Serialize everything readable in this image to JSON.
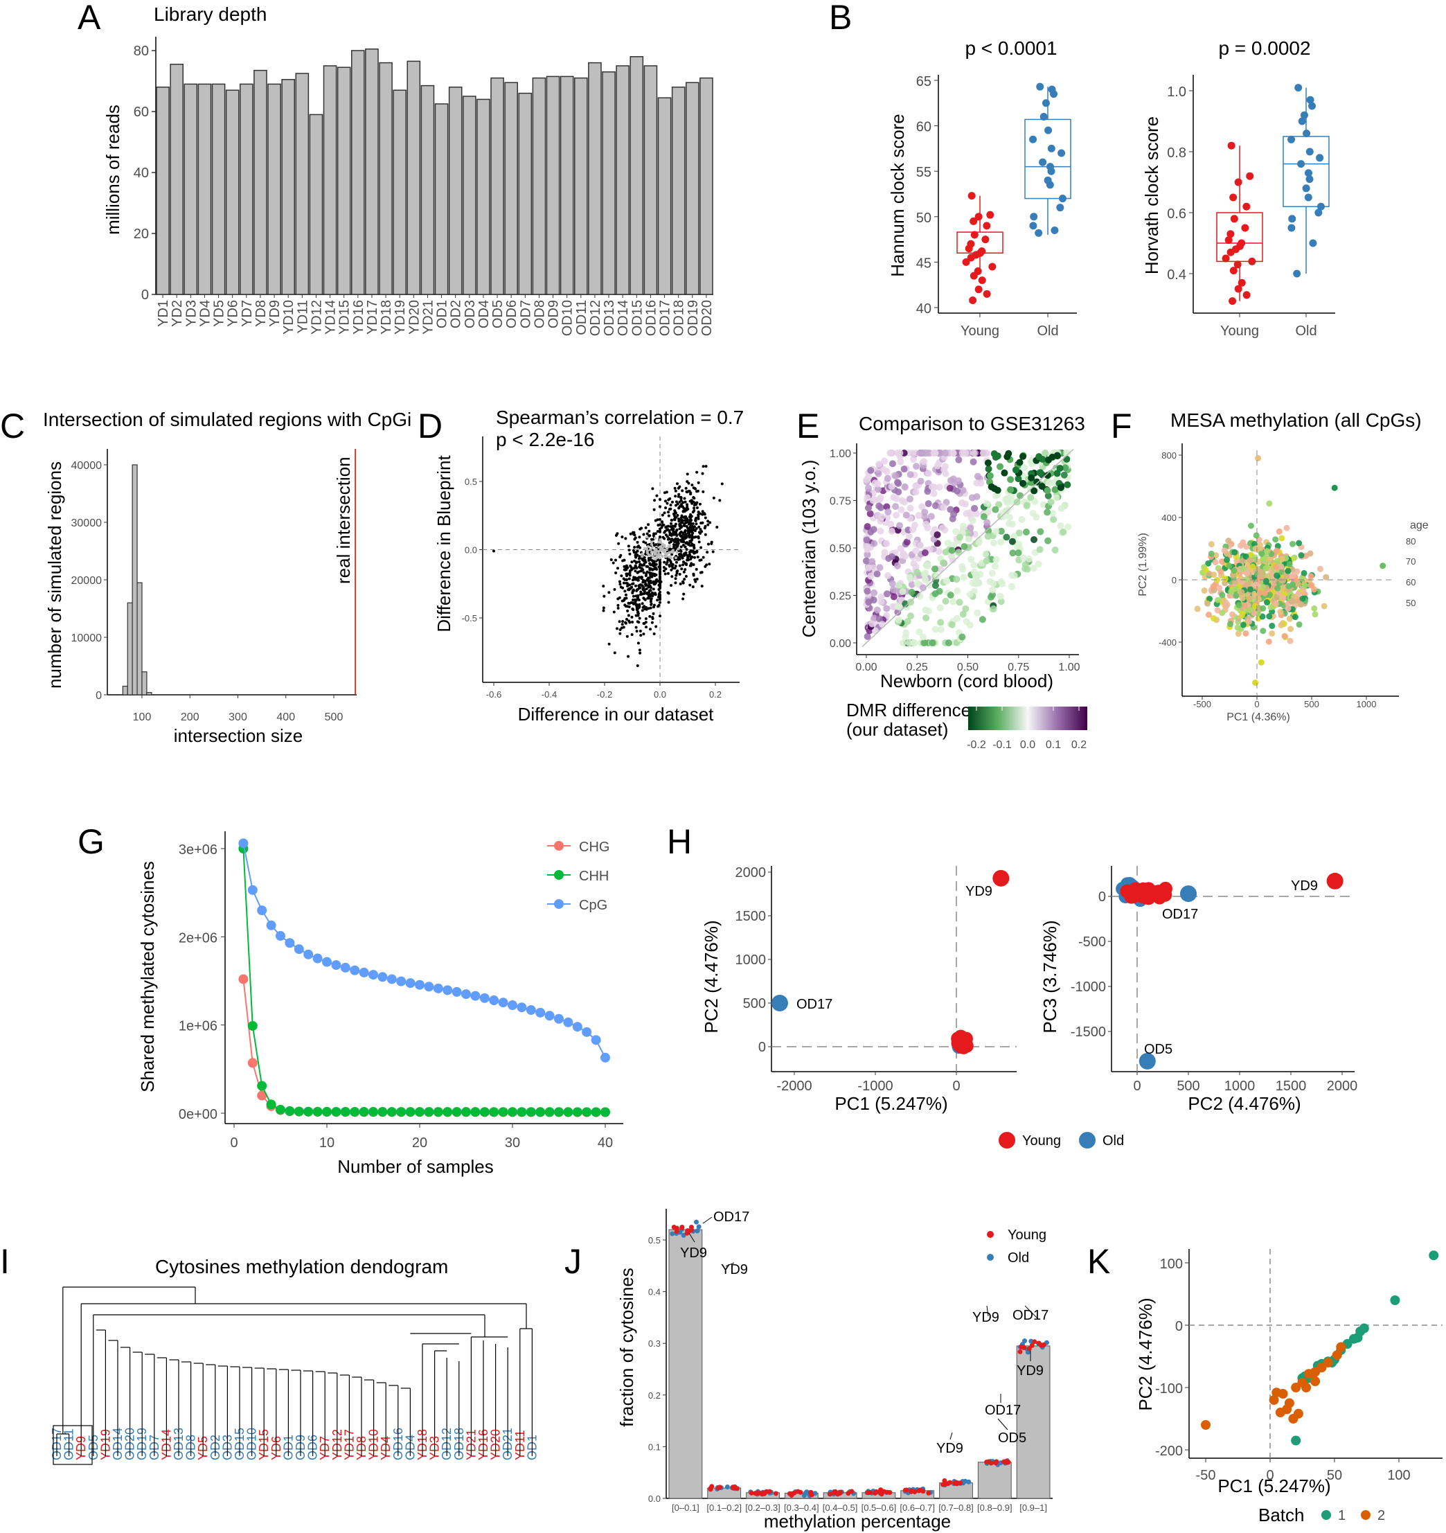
{
  "panel_labels": [
    "A",
    "B",
    "C",
    "D",
    "E",
    "F",
    "G",
    "H",
    "I",
    "J",
    "K"
  ],
  "colors": {
    "young": "#e41a1c",
    "old": "#377eb8",
    "bar": "#bebebe",
    "chg": "#f8766d",
    "chh": "#00ba38",
    "cpg": "#619cff",
    "batch1": "#1b9e77",
    "batch2": "#d95f02",
    "real_line": "#c0392b"
  },
  "chart_data": [
    {
      "id": "A",
      "type": "bar",
      "title": "Library depth",
      "ylabel": "millions of reads",
      "ylim": [
        0,
        80
      ],
      "yticks": [
        "0",
        "20",
        "40",
        "60",
        "80"
      ],
      "categories": [
        "YD1",
        "YD2",
        "YD3",
        "YD4",
        "YD5",
        "YD6",
        "YD7",
        "YD8",
        "YD9",
        "YD10",
        "YD11",
        "YD12",
        "YD14",
        "YD15",
        "YD16",
        "YD17",
        "YD18",
        "YD19",
        "YD20",
        "YD21",
        "OD1",
        "OD2",
        "OD3",
        "OD4",
        "OD5",
        "OD6",
        "OD7",
        "OD8",
        "OD9",
        "OD10",
        "OD11",
        "OD12",
        "OD13",
        "OD14",
        "OD15",
        "OD16",
        "OD17",
        "OD18",
        "OD19",
        "OD20"
      ],
      "values": [
        68,
        75.5,
        69,
        69,
        69,
        67,
        69,
        73.5,
        69,
        70.5,
        72.5,
        59,
        75,
        74.5,
        80,
        80.5,
        76,
        67,
        76.5,
        68.5,
        62.5,
        68,
        65,
        64,
        71,
        69.5,
        66,
        71,
        71.5,
        71.5,
        71,
        76,
        73,
        75,
        78,
        75,
        64.5,
        68,
        69.5,
        71
      ]
    },
    {
      "id": "B1",
      "type": "scatter",
      "title": "p < 0.0001",
      "ylabel": "Hannum clock score",
      "categories": [
        "Young",
        "Old"
      ],
      "ylim": [
        40,
        65
      ],
      "yticks": [
        "40",
        "45",
        "50",
        "55",
        "60",
        "65"
      ],
      "box": [
        {
          "q1": 46,
          "median": 46,
          "q3": 48.3,
          "min": 44,
          "max": 52.3
        },
        {
          "q1": 52,
          "median": 55.5,
          "q3": 60.7,
          "min": 48,
          "max": 64.3
        }
      ],
      "series": [
        {
          "name": "Young",
          "values": [
            52.3,
            50.2,
            50,
            49.5,
            49,
            48,
            47.5,
            47,
            46.5,
            46.2,
            46,
            45.8,
            45.5,
            45,
            44.5,
            44,
            43.5,
            43,
            42,
            41.5,
            40.8
          ]
        },
        {
          "name": "Old",
          "values": [
            64.3,
            64,
            63.5,
            62.5,
            61,
            59.5,
            58.5,
            57.5,
            57,
            56,
            55.5,
            55,
            54,
            53.5,
            52,
            51,
            50,
            49,
            48.5,
            48.2
          ]
        }
      ]
    },
    {
      "id": "B2",
      "type": "scatter",
      "title": "p = 0.0002",
      "ylabel": "Horvath clock score",
      "categories": [
        "Young",
        "Old"
      ],
      "ylim": [
        0.3,
        1.0
      ],
      "yticks": [
        "0.4",
        "0.6",
        "0.8",
        "1.0"
      ],
      "box": [
        {
          "q1": 0.44,
          "median": 0.5,
          "q3": 0.6,
          "min": 0.31,
          "max": 0.82
        },
        {
          "q1": 0.62,
          "median": 0.76,
          "q3": 0.85,
          "min": 0.4,
          "max": 1.01
        }
      ],
      "series": [
        {
          "name": "Young",
          "values": [
            0.82,
            0.72,
            0.7,
            0.65,
            0.62,
            0.58,
            0.55,
            0.53,
            0.51,
            0.5,
            0.49,
            0.48,
            0.47,
            0.45,
            0.44,
            0.43,
            0.41,
            0.37,
            0.35,
            0.33,
            0.31
          ]
        },
        {
          "name": "Old",
          "values": [
            1.01,
            0.97,
            0.95,
            0.92,
            0.9,
            0.86,
            0.84,
            0.8,
            0.78,
            0.76,
            0.73,
            0.71,
            0.68,
            0.65,
            0.62,
            0.6,
            0.58,
            0.55,
            0.5,
            0.4
          ]
        }
      ]
    },
    {
      "id": "C",
      "type": "histogram",
      "title": "Intersection of simulated regions with CpGi",
      "xlabel": "intersection size",
      "ylabel": "number of simulated regions",
      "xlim": [
        40,
        560
      ],
      "ylim": [
        0,
        44000
      ],
      "xticks": [
        "100",
        "200",
        "300",
        "400",
        "500"
      ],
      "yticks": [
        "0",
        "10000",
        "20000",
        "30000",
        "40000"
      ],
      "bins_x": [
        70,
        80,
        90,
        100,
        110,
        120
      ],
      "counts": [
        1500,
        16000,
        40000,
        19500,
        4000,
        400
      ],
      "real_intersection": 545,
      "annotation": "real intersection"
    },
    {
      "id": "D",
      "type": "scatter",
      "title": "Spearman’s correlation = 0.7",
      "subtitle": "p < 2.2e-16",
      "xlabel": "Difference in our dataset",
      "ylabel": "Difference in Blueprint",
      "xlim": [
        -0.65,
        0.3
      ],
      "ylim": [
        -0.88,
        0.78
      ],
      "xticks": [
        "-0.6",
        "-0.4",
        "-0.2",
        "0.0",
        "0.2"
      ],
      "yticks": [
        "-0.5",
        "0.0",
        "0.5"
      ]
    },
    {
      "id": "E",
      "type": "scatter",
      "title": "Comparison to GSE31263",
      "xlabel": "Newborn (cord blood)",
      "ylabel": "Centenarian (103 y.o.)",
      "xlim": [
        -0.02,
        1.02
      ],
      "ylim": [
        -0.03,
        1.03
      ],
      "ticks": [
        "0.00",
        "0.25",
        "0.50",
        "0.75",
        "1.00"
      ],
      "legend": {
        "title": "DMR difference\n(our dataset)",
        "title_line1": "DMR difference",
        "title_line2": "(our dataset)",
        "labels": [
          "-0.2",
          "-0.1",
          "0.0",
          "0.1",
          "0.2"
        ]
      }
    },
    {
      "id": "F",
      "type": "scatter",
      "title": "MESA methylation (all CpGs)",
      "xlabel": "PC1 (4.36%)",
      "ylabel": "PC2 (1.99%)",
      "xlim": [
        -700,
        1300
      ],
      "ylim": [
        -700,
        880
      ],
      "xticks": [
        "-500",
        "0",
        "500",
        "1000"
      ],
      "yticks": [
        "-400",
        "0",
        "400",
        "800"
      ],
      "legend": {
        "title": "age",
        "labels": [
          "80",
          "70",
          "60",
          "50"
        ]
      }
    },
    {
      "id": "G",
      "type": "line",
      "xlabel": "Number of samples",
      "ylabel": "Shared methylated cytosines",
      "xlim": [
        -1,
        42
      ],
      "ylim": [
        -50000,
        3100000
      ],
      "xticks": [
        "0",
        "10",
        "20",
        "30",
        "40"
      ],
      "yticks": [
        "0e+00",
        "1e+06",
        "2e+06",
        "3e+06"
      ],
      "x": [
        1,
        2,
        3,
        4,
        5,
        6,
        7,
        8,
        9,
        10,
        11,
        12,
        13,
        14,
        15,
        16,
        17,
        18,
        19,
        20,
        21,
        22,
        23,
        24,
        25,
        26,
        27,
        28,
        29,
        30,
        31,
        32,
        33,
        34,
        35,
        36,
        37,
        38,
        39,
        40
      ],
      "series": [
        {
          "name": "CHG",
          "values": [
            1520000,
            570000,
            200000,
            80000,
            35000,
            22000,
            18000,
            16000,
            15000,
            14500,
            14000,
            13800,
            13600,
            13500,
            13400,
            13300,
            13200,
            13100,
            13000,
            12900,
            12800,
            12700,
            12600,
            12500,
            12400,
            12300,
            12200,
            12100,
            12000,
            11900,
            11800,
            11700,
            11600,
            11500,
            11400,
            11300,
            11200,
            11100,
            11000,
            10500
          ]
        },
        {
          "name": "CHH",
          "values": [
            3000000,
            990000,
            310000,
            100000,
            40000,
            25000,
            20000,
            18000,
            17000,
            16500,
            16000,
            15800,
            15600,
            15500,
            15400,
            15300,
            15200,
            15100,
            15000,
            14900,
            14800,
            14700,
            14600,
            14500,
            14400,
            14300,
            14200,
            14100,
            14000,
            13900,
            13800,
            13700,
            13600,
            13500,
            13400,
            13300,
            13200,
            13100,
            13000,
            12500
          ]
        },
        {
          "name": "CpG",
          "values": [
            3060000,
            2530000,
            2300000,
            2130000,
            2010000,
            1930000,
            1860000,
            1800000,
            1755000,
            1715000,
            1680000,
            1650000,
            1620000,
            1595000,
            1570000,
            1545000,
            1520000,
            1495000,
            1475000,
            1455000,
            1435000,
            1415000,
            1395000,
            1375000,
            1350000,
            1330000,
            1305000,
            1280000,
            1255000,
            1225000,
            1200000,
            1170000,
            1140000,
            1105000,
            1070000,
            1030000,
            980000,
            920000,
            830000,
            630000
          ]
        }
      ]
    },
    {
      "id": "H1",
      "type": "scatter",
      "xlabel": "PC1 (5.247%)",
      "ylabel": "PC2 (4.476%)",
      "xlim": [
        -2280,
        700
      ],
      "ylim": [
        -230,
        2080
      ],
      "xticks": [
        "-2000",
        "-1000",
        "0"
      ],
      "yticks": [
        "0",
        "500",
        "1000",
        "1500",
        "2000"
      ],
      "points": [
        {
          "label": "YD9",
          "x": 550,
          "y": 1930,
          "group": "Young"
        },
        {
          "label": "OD17",
          "x": -2180,
          "y": 500,
          "group": "Old"
        }
      ]
    },
    {
      "id": "H2",
      "type": "scatter",
      "xlabel": "PC2 (4.476%)",
      "ylabel": "PC3 (3.746%)",
      "xlim": [
        -280,
        2100
      ],
      "ylim": [
        -1950,
        260
      ],
      "xticks": [
        "0",
        "500",
        "1000",
        "1500",
        "2000"
      ],
      "yticks": [
        "-1500",
        "-1000",
        "-500",
        "0"
      ],
      "points": [
        {
          "label": "YD9",
          "x": 1930,
          "y": 170,
          "group": "Young"
        },
        {
          "label": "OD17",
          "x": 500,
          "y": 30,
          "group": "Old"
        },
        {
          "label": "OD5",
          "x": 100,
          "y": -1830,
          "group": "Old"
        }
      ],
      "legend": [
        "Young",
        "Old"
      ]
    },
    {
      "id": "I",
      "type": "dendrogram",
      "title": "Cytosines methylation dendogram",
      "leaves": [
        {
          "label": "OD17",
          "group": "old"
        },
        {
          "label": "OD11",
          "group": "old"
        },
        {
          "label": "YD9",
          "group": "young"
        },
        {
          "label": "OD5",
          "group": "old"
        },
        {
          "label": "YD19",
          "group": "young"
        },
        {
          "label": "OD14",
          "group": "old"
        },
        {
          "label": "OD20",
          "group": "old"
        },
        {
          "label": "OD19",
          "group": "old"
        },
        {
          "label": "OD7",
          "group": "old"
        },
        {
          "label": "YD14",
          "group": "young"
        },
        {
          "label": "OD13",
          "group": "old"
        },
        {
          "label": "OD8",
          "group": "old"
        },
        {
          "label": "YD5",
          "group": "young"
        },
        {
          "label": "OD2",
          "group": "old"
        },
        {
          "label": "OD3",
          "group": "old"
        },
        {
          "label": "OD15",
          "group": "old"
        },
        {
          "label": "OD10",
          "group": "old"
        },
        {
          "label": "YD15",
          "group": "young"
        },
        {
          "label": "YD6",
          "group": "young"
        },
        {
          "label": "OD1",
          "group": "old"
        },
        {
          "label": "OD9",
          "group": "old"
        },
        {
          "label": "OD6",
          "group": "old"
        },
        {
          "label": "YD7",
          "group": "young"
        },
        {
          "label": "YD12",
          "group": "young"
        },
        {
          "label": "YD17",
          "group": "young"
        },
        {
          "label": "YD8",
          "group": "young"
        },
        {
          "label": "YD10",
          "group": "young"
        },
        {
          "label": "YD4",
          "group": "young"
        },
        {
          "label": "OD16",
          "group": "old"
        },
        {
          "label": "OD4",
          "group": "old"
        },
        {
          "label": "YD18",
          "group": "young"
        },
        {
          "label": "YD3",
          "group": "young"
        },
        {
          "label": "OD12",
          "group": "old"
        },
        {
          "label": "OD18",
          "group": "old"
        },
        {
          "label": "YD21",
          "group": "young"
        },
        {
          "label": "YD16",
          "group": "young"
        },
        {
          "label": "YD20",
          "group": "young"
        },
        {
          "label": "OD21",
          "group": "old"
        },
        {
          "label": "YD11",
          "group": "young"
        },
        {
          "label": "OD1",
          "group": "old"
        }
      ]
    },
    {
      "id": "J",
      "type": "bar",
      "xlabel": "methylation percentage",
      "ylabel": "fraction of cytosines",
      "ylim": [
        0,
        0.55
      ],
      "yticks": [
        "0.0",
        "0.1",
        "0.2",
        "0.3",
        "0.4",
        "0.5"
      ],
      "categories": [
        "[0–0.1]",
        "[0.1–0.2]",
        "[0.2–0.3]",
        "[0.3–0.4]",
        "[0.4–0.5]",
        "[0.5–0.6]",
        "[0.6–0.7]",
        "[0.7–0.8]",
        "[0.8–0.9]",
        "[0.9–1]"
      ],
      "values": [
        0.52,
        0.02,
        0.011,
        0.01,
        0.011,
        0.011,
        0.015,
        0.03,
        0.07,
        0.295
      ],
      "annotations": [
        "OD17",
        "YD9",
        "YD9",
        "YD9",
        "YD9",
        "OD17",
        "OD5",
        "OD17",
        "YD9"
      ],
      "legend": [
        "Young",
        "Old"
      ]
    },
    {
      "id": "K",
      "type": "scatter",
      "xlabel": "PC1 (5.247%)",
      "ylabel": "PC2 (4.476%)",
      "xlim": [
        -60,
        135
      ],
      "ylim": [
        -205,
        125
      ],
      "xticks": [
        "-50",
        "0",
        "50",
        "100"
      ],
      "yticks": [
        "-200",
        "-100",
        "0",
        "100"
      ],
      "legend": {
        "title": "Batch",
        "labels": [
          "1",
          "2"
        ]
      },
      "series": [
        {
          "name": "1",
          "points": [
            [
              127,
              112
            ],
            [
              97,
              40
            ],
            [
              73,
              -5
            ],
            [
              70,
              -10
            ],
            [
              68,
              -20
            ],
            [
              65,
              -22
            ],
            [
              60,
              -30
            ],
            [
              55,
              -40
            ],
            [
              50,
              -55
            ],
            [
              48,
              -60
            ],
            [
              45,
              -58
            ],
            [
              40,
              -62
            ],
            [
              37,
              -65
            ],
            [
              33,
              -80
            ],
            [
              30,
              -85
            ],
            [
              27,
              -82
            ],
            [
              25,
              -85
            ],
            [
              20,
              -185
            ]
          ]
        },
        {
          "name": "2",
          "points": [
            [
              -50,
              -160
            ],
            [
              55,
              -35
            ],
            [
              52,
              -48
            ],
            [
              45,
              -60
            ],
            [
              40,
              -68
            ],
            [
              35,
              -75
            ],
            [
              30,
              -78
            ],
            [
              25,
              -92
            ],
            [
              20,
              -100
            ],
            [
              10,
              -110
            ],
            [
              5,
              -108
            ],
            [
              3,
              -120
            ],
            [
              8,
              -140
            ],
            [
              13,
              -135
            ],
            [
              18,
              -150
            ],
            [
              22,
              -142
            ],
            [
              15,
              -125
            ],
            [
              28,
              -100
            ],
            [
              35,
              -90
            ]
          ]
        }
      ]
    }
  ]
}
